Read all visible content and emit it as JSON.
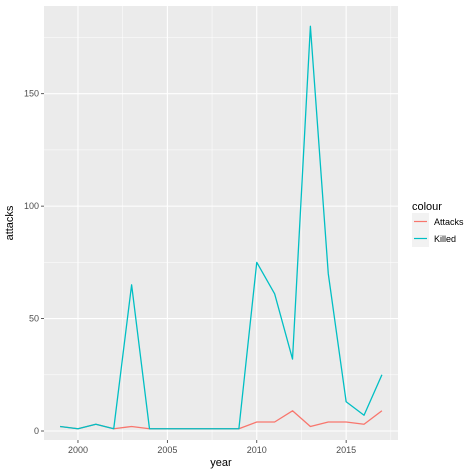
{
  "chart_data": {
    "type": "line",
    "xlabel": "year",
    "ylabel": "attacks",
    "x": [
      1999,
      2000,
      2001,
      2002,
      2003,
      2004,
      2005,
      2006,
      2007,
      2008,
      2009,
      2010,
      2011,
      2012,
      2013,
      2014,
      2015,
      2016,
      2017
    ],
    "xlim": [
      1998.1,
      2017.9
    ],
    "ylim": [
      -4,
      189
    ],
    "xticks": [
      2000,
      2005,
      2010,
      2015
    ],
    "yticks": [
      0,
      50,
      100,
      150
    ],
    "grid": true,
    "legend": {
      "title": "colour",
      "position": "right"
    },
    "series": [
      {
        "name": "Attacks",
        "color": "#F8766D",
        "values": [
          2,
          1,
          3,
          1,
          2,
          1,
          1,
          1,
          1,
          1,
          1,
          4,
          4,
          9,
          2,
          4,
          4,
          3,
          9
        ]
      },
      {
        "name": "Killed",
        "color": "#00BFC4",
        "values": [
          2,
          1,
          3,
          1,
          65,
          1,
          1,
          1,
          1,
          1,
          1,
          75,
          61,
          32,
          180,
          70,
          13,
          7,
          25
        ]
      }
    ]
  }
}
